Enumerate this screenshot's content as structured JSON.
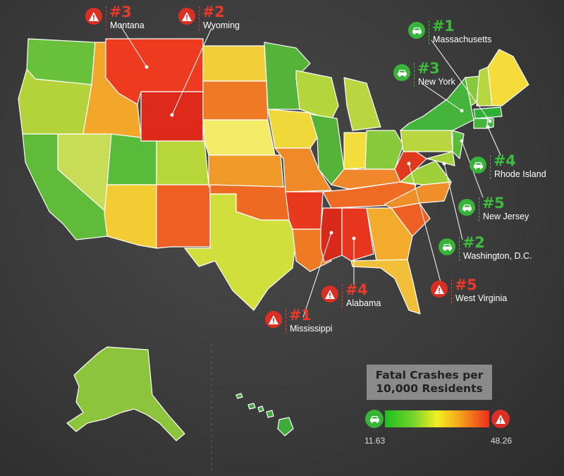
{
  "legend": {
    "title_line1": "Fatal Crashes per",
    "title_line2": "10,000 Residents",
    "min_value": "11.63",
    "max_value": "48.26",
    "min_icon": "car-icon",
    "max_icon": "warning-icon",
    "gradient_colors": [
      "#20c020",
      "#6ad22a",
      "#f0ef20",
      "#f5a21a",
      "#ee2f1c"
    ]
  },
  "colors": {
    "safe": "#39b43b",
    "danger": "#dc2f23"
  },
  "safest": [
    {
      "rank": "#1",
      "state": "Massachusetts"
    },
    {
      "rank": "#2",
      "state": "Washington, D.C."
    },
    {
      "rank": "#3",
      "state": "New York"
    },
    {
      "rank": "#4",
      "state": "Rhode Island"
    },
    {
      "rank": "#5",
      "state": "New Jersey"
    }
  ],
  "deadliest": [
    {
      "rank": "#1",
      "state": "Mississippi"
    },
    {
      "rank": "#2",
      "state": "Wyoming"
    },
    {
      "rank": "#3",
      "state": "Montana"
    },
    {
      "rank": "#4",
      "state": "Alabama"
    },
    {
      "rank": "#5",
      "state": "West Virginia"
    }
  ]
}
